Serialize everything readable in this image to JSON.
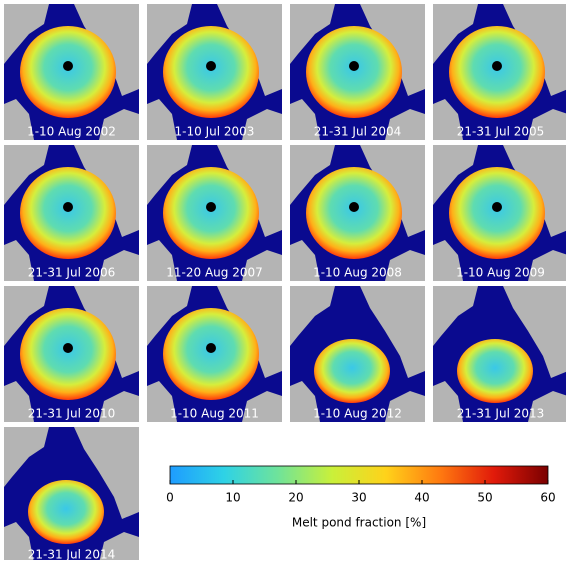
{
  "panels": [
    {
      "label": "1-10 Aug 2002"
    },
    {
      "label": "1-10 Jul 2003"
    },
    {
      "label": "21-31 Jul 2004"
    },
    {
      "label": "21-31 Jul 2005"
    },
    {
      "label": "21-31 Jul 2006"
    },
    {
      "label": "11-20 Aug 2007"
    },
    {
      "label": "1-10 Aug 2008"
    },
    {
      "label": "1-10 Aug 2009"
    },
    {
      "label": "21-31 Jul 2010"
    },
    {
      "label": "1-10 Aug 2011"
    },
    {
      "label": "1-10 Aug 2012"
    },
    {
      "label": "21-31 Jul 2013"
    },
    {
      "label": "21-31 Jul 2014"
    }
  ],
  "colorbar": {
    "label": "Melt pond fraction [%]",
    "range": [
      0,
      60
    ],
    "ticks": [
      0,
      10,
      20,
      30,
      40,
      50,
      60
    ],
    "colors": [
      "#1e9cff",
      "#2ed2e6",
      "#6fe39a",
      "#c9f03a",
      "#ffd21a",
      "#ff7a10",
      "#e11a0a",
      "#7a0000"
    ]
  }
}
